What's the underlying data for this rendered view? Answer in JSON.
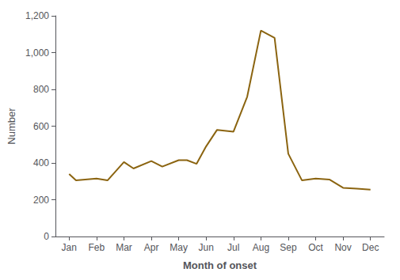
{
  "chart_data": {
    "type": "line",
    "x": [
      0,
      0.25,
      1,
      1.4,
      2,
      2.35,
      3,
      3.4,
      4,
      4.3,
      4.65,
      5,
      5.4,
      6,
      6.5,
      7,
      7.5,
      8,
      8.5,
      9,
      9.5,
      10,
      10.5,
      11
    ],
    "values": [
      340,
      305,
      315,
      305,
      405,
      370,
      410,
      380,
      415,
      415,
      395,
      490,
      580,
      570,
      760,
      1120,
      1080,
      450,
      305,
      315,
      310,
      265,
      260,
      255
    ],
    "color": "#8B6410",
    "xlabel": "Month of onset",
    "ylabel": "Number",
    "xlim": [
      -0.5,
      11.5
    ],
    "xticks": [
      {
        "value": 0,
        "label": "Jan"
      },
      {
        "value": 1,
        "label": "Feb"
      },
      {
        "value": 2,
        "label": "Mar"
      },
      {
        "value": 3,
        "label": "Apr"
      },
      {
        "value": 4,
        "label": "May"
      },
      {
        "value": 5,
        "label": "Jun"
      },
      {
        "value": 6,
        "label": "Jul"
      },
      {
        "value": 7,
        "label": "Aug"
      },
      {
        "value": 8,
        "label": "Sep"
      },
      {
        "value": 9,
        "label": "Oct"
      },
      {
        "value": 10,
        "label": "Nov"
      },
      {
        "value": 11,
        "label": "Dec"
      }
    ],
    "ylim": [
      0,
      1200
    ],
    "yticks": [
      0,
      200,
      400,
      600,
      800,
      {
        "value": 1000,
        "label": "1,000"
      },
      {
        "value": 1200,
        "label": "1,200"
      }
    ],
    "grid": false
  }
}
